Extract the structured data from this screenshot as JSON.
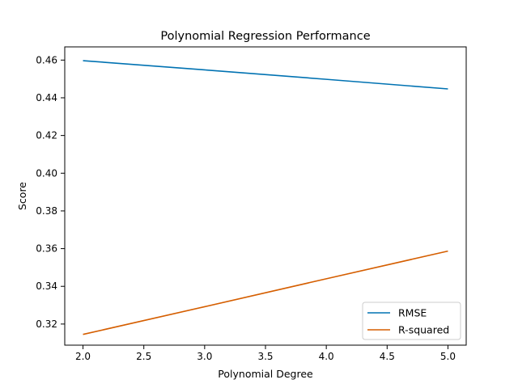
{
  "chart_data": {
    "type": "line",
    "title": "Polynomial Regression Performance",
    "xlabel": "Polynomial Degree",
    "ylabel": "Score",
    "x": [
      2,
      3,
      4,
      5
    ],
    "series": [
      {
        "name": "RMSE",
        "color": "#0072B2",
        "values": [
          0.4597,
          0.4548,
          0.4498,
          0.4447
        ]
      },
      {
        "name": "R-squared",
        "color": "#D55E00",
        "values": [
          0.3145,
          0.3292,
          0.344,
          0.3587
        ]
      }
    ],
    "xlim": [
      1.85,
      5.15
    ],
    "ylim": [
      0.3088,
      0.467
    ],
    "xticks": [
      2.0,
      2.5,
      3.0,
      3.5,
      4.0,
      4.5,
      5.0
    ],
    "xtick_labels": [
      "2.0",
      "2.5",
      "3.0",
      "3.5",
      "4.0",
      "4.5",
      "5.0"
    ],
    "yticks": [
      0.32,
      0.34,
      0.36,
      0.38,
      0.4,
      0.42,
      0.44,
      0.46
    ],
    "ytick_labels": [
      "0.32",
      "0.34",
      "0.36",
      "0.38",
      "0.40",
      "0.42",
      "0.44",
      "0.46"
    ],
    "grid": false,
    "legend_position": "lower-right"
  }
}
